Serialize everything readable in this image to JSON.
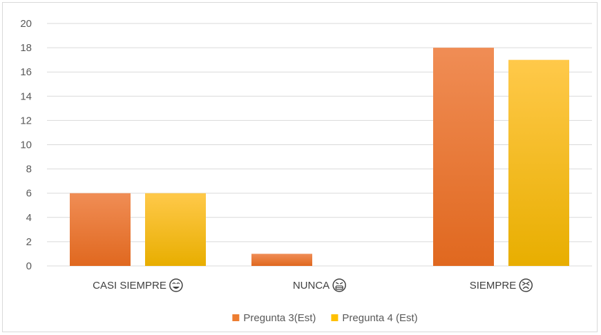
{
  "chart_data": {
    "type": "bar",
    "categories": [
      "CASI SIEMPRE",
      "NUNCA",
      "SIEMPRE"
    ],
    "category_icons": [
      "smiling-face-icon",
      "sad-face-icon",
      "tired-face-icon"
    ],
    "series": [
      {
        "name": "Pregunta 3(Est)",
        "values": [
          6,
          1,
          18
        ],
        "color": "#ED7D31",
        "color_light": "#F08D55",
        "color_dark": "#E0681F"
      },
      {
        "name": "Pregunta 4 (Est)",
        "values": [
          6,
          0,
          17
        ],
        "color": "#FFC000",
        "color_light": "#FFC94A",
        "color_dark": "#E8AE00"
      }
    ],
    "ylim": [
      0,
      20
    ],
    "yticks": [
      0,
      2,
      4,
      6,
      8,
      10,
      12,
      14,
      16,
      18,
      20
    ],
    "grid": true,
    "legend_position": "bottom",
    "title": "",
    "xlabel": "",
    "ylabel": ""
  }
}
